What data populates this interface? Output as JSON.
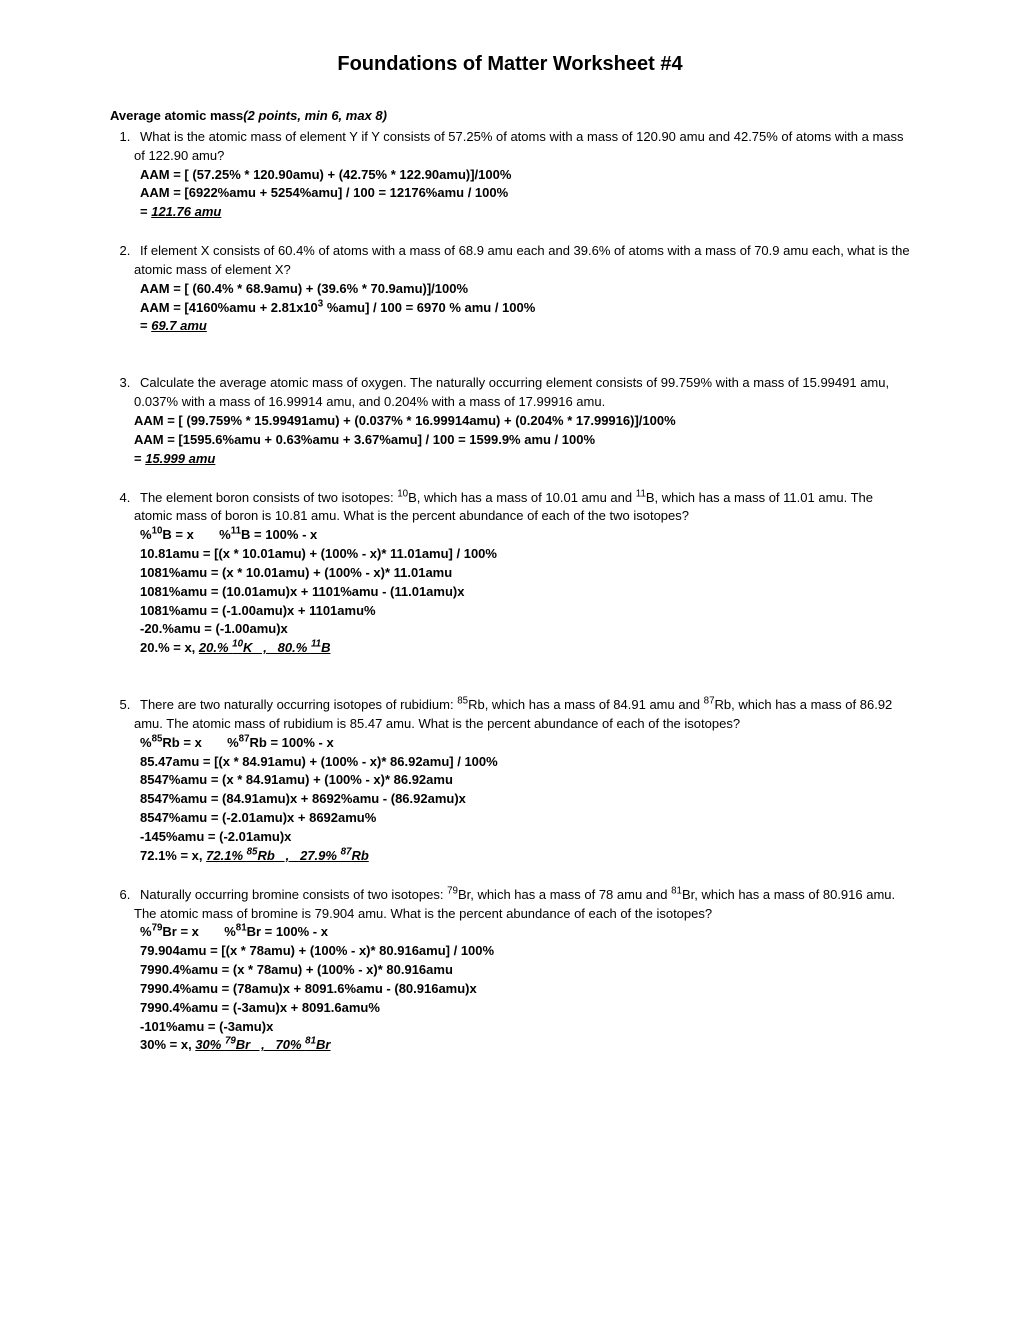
{
  "title": "Foundations of Matter Worksheet #4",
  "section": {
    "label": "Average atomic mass",
    "points": "(2 points, min 6, max 8)"
  },
  "q1": {
    "text": "What is the atomic mass of element Y if Y consists of 57.25% of atoms with a mass of 120.90 amu and 42.75% of atoms with a mass of 122.90 amu?",
    "l1": "AAM = [ (57.25% * 120.90amu) + (42.75% * 122.90amu)]/100%",
    "l2": "AAM = [6922%amu + 5254%amu] / 100  = 12176%amu / 100%",
    "l3": "=  ",
    "final": "121.76 amu"
  },
  "q2": {
    "text": "If element X consists of 60.4% of atoms with a mass of 68.9 amu each and 39.6% of atoms with a mass of 70.9 amu each, what is the atomic mass of element X?",
    "l1": "AAM = [ (60.4% * 68.9amu) + (39.6% * 70.9amu)]/100%",
    "l2a": "AAM = [4160%amu + 2.81x10",
    "l2b": " %amu] / 100  = 6970 % amu / 100%",
    "l3": "=  ",
    "final": "69.7 amu"
  },
  "q3": {
    "text": "Calculate the average atomic mass of oxygen.  The naturally occurring element consists of 99.759% with a mass of 15.99491 amu, 0.037% with a mass of 16.99914 amu, and 0.204% with a mass of 17.99916 amu.",
    "l1": "AAM = [ (99.759% * 15.99491amu) + (0.037% * 16.99914amu) + (0.204% * 17.99916)]/100%",
    "l2": "AAM = [1595.6%amu + 0.63%amu + 3.67%amu] / 100  = 1599.9% amu / 100%",
    "l3": "=  ",
    "final": "15.999 amu"
  },
  "q4": {
    "texta": "The element boron consists of two isotopes: ",
    "textb": "B, which has a mass of 10.01 amu and ",
    "textc": "B, which has a mass of 11.01 amu. The atomic mass of boron is 10.81 amu.  What is the percent abundance of each of the two isotopes?",
    "v1a": "%",
    "v1b": "B = x       %",
    "v1c": "B = 100% - x",
    "l2": "10.81amu = [(x * 10.01amu) + (100% - x)* 11.01amu] / 100%",
    "l3": "1081%amu = (x * 10.01amu) + (100% - x)* 11.01amu",
    "l4": "1081%amu = (10.01amu)x + 1101%amu - (11.01amu)x",
    "l5": "1081%amu = (-1.00amu)x + 1101amu%",
    "l6": "-20.%amu = (-1.00amu)x",
    "l7": "20.% = x, ",
    "fa": "20.% ",
    "fb": "K   ,   80.% ",
    "fc": "B"
  },
  "q5": {
    "texta": "There are two naturally occurring isotopes of rubidium: ",
    "textb": "Rb, which has a mass of 84.91 amu and ",
    "textc": "Rb, which has a mass of 86.92 amu. The atomic mass of rubidium is 85.47 amu.  What is the percent abundance of each of the isotopes?",
    "v1a": "%",
    "v1b": "Rb = x       %",
    "v1c": "Rb = 100% - x",
    "l2": "85.47amu = [(x * 84.91amu) + (100% - x)* 86.92amu] / 100%",
    "l3": "8547%amu = (x * 84.91amu) + (100% - x)* 86.92amu",
    "l4": "8547%amu = (84.91amu)x + 8692%amu - (86.92amu)x",
    "l5": "8547%amu = (-2.01amu)x + 8692amu%",
    "l6": "-145%amu = (-2.01amu)x",
    "l7": "72.1% = x, ",
    "fa": "72.1% ",
    "fb": "Rb   ,   27.9% ",
    "fc": "Rb"
  },
  "q6": {
    "texta": "Naturally occurring bromine consists of two isotopes: ",
    "textb": "Br, which has a mass of 78 amu and ",
    "textc": "Br, which has a mass of 80.916 amu. The atomic mass of bromine is 79.904 amu.  What is the percent abundance of each of the isotopes?",
    "v1a": "%",
    "v1b": "Br = x       %",
    "v1c": "Br = 100% - x",
    "l2": "79.904amu = [(x * 78amu) + (100% - x)* 80.916amu] / 100%",
    "l3": "7990.4%amu = (x * 78amu) + (100% - x)* 80.916amu",
    "l4": "7990.4%amu = (78amu)x + 8091.6%amu - (80.916amu)x",
    "l5": "7990.4%amu = (-3amu)x + 8091.6amu%",
    "l6": "-101%amu = (-3amu)x",
    "l7": "30% = x, ",
    "fa": "30% ",
    "fb": "Br   ,   70% ",
    "fc": "Br"
  }
}
